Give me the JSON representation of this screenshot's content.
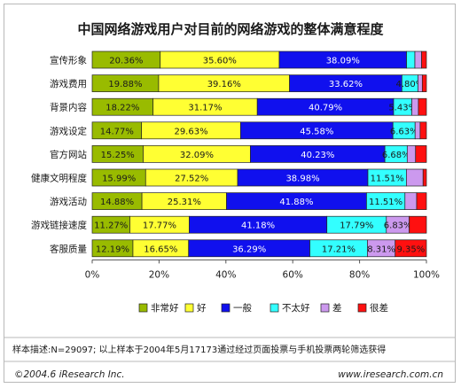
{
  "chart_data": {
    "type": "bar",
    "stacked": true,
    "orientation": "horizontal",
    "title": "中国网络游戏用户对目前的网络游戏的整体满意程度",
    "categories": [
      "宣传形象",
      "游戏费用",
      "背景内容",
      "游戏设定",
      "官方网站",
      "健康文明程度",
      "游戏活动",
      "游戏链接速度",
      "客服质量"
    ],
    "series": [
      {
        "name": "非常好",
        "color": "#99bb00",
        "values": [
          20.36,
          19.88,
          18.22,
          14.77,
          15.25,
          15.99,
          14.88,
          11.27,
          12.19
        ]
      },
      {
        "name": "好",
        "color": "#ffff33",
        "values": [
          35.6,
          39.16,
          31.17,
          29.63,
          32.09,
          27.52,
          25.31,
          17.77,
          16.65
        ]
      },
      {
        "name": "一般",
        "color": "#1010ee",
        "values": [
          38.09,
          33.62,
          40.79,
          45.58,
          40.23,
          38.98,
          41.88,
          41.18,
          36.29
        ]
      },
      {
        "name": "不太好",
        "color": "#33ffff",
        "values": [
          2.5,
          4.8,
          5.43,
          6.63,
          6.68,
          11.51,
          11.51,
          17.79,
          17.21
        ]
      },
      {
        "name": "差",
        "color": "#cc99ee",
        "values": [
          2.0,
          1.3,
          2.0,
          1.5,
          2.5,
          5.0,
          3.5,
          6.83,
          8.31
        ]
      },
      {
        "name": "很差",
        "color": "#ff1010",
        "values": [
          1.45,
          1.24,
          2.39,
          1.89,
          3.25,
          1.0,
          2.92,
          5.16,
          9.35
        ]
      }
    ],
    "labels": [
      [
        "20.36%",
        "35.60%",
        "38.09%",
        "",
        "",
        ""
      ],
      [
        "19.88%",
        "39.16%",
        "33.62%",
        "4.80%",
        "",
        ""
      ],
      [
        "18.22%",
        "31.17%",
        "40.79%",
        "5.43%",
        "",
        ""
      ],
      [
        "14.77%",
        "29.63%",
        "45.58%",
        "6.63%",
        "",
        ""
      ],
      [
        "15.25%",
        "32.09%",
        "40.23%",
        "6.68%",
        "",
        ""
      ],
      [
        "15.99%",
        "27.52%",
        "38.98%",
        "11.51%",
        "",
        ""
      ],
      [
        "14.88%",
        "25.31%",
        "41.88%",
        "11.51%",
        "",
        ""
      ],
      [
        "11.27%",
        "17.77%",
        "41.18%",
        "17.79%",
        "6.83%",
        ""
      ],
      [
        "12.19%",
        "16.65%",
        "36.29%",
        "17.21%",
        "8.31%",
        "9.35%"
      ]
    ],
    "xticks": [
      "0%",
      "20%",
      "40%",
      "60%",
      "80%",
      "100%"
    ],
    "xlim": [
      0,
      100
    ],
    "grid": false,
    "legend_position": "bottom"
  },
  "footer": {
    "note": "样本描述:N=29097; 以上样本于2004年5月17173通过经过页面投票与手机投票两轮筛选获得",
    "copyright": "©2004.6  iResearch Inc.",
    "website": "www.iresearch.com.cn"
  }
}
